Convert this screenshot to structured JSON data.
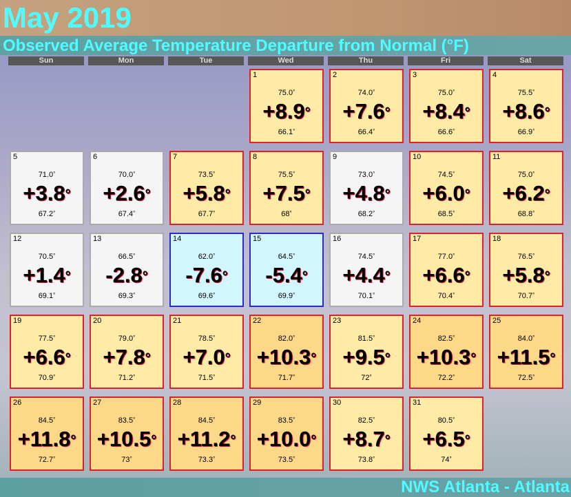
{
  "title": "May 2019",
  "subtitle": "Observed Average Temperature Departure from Normal (°F)",
  "footer": "NWS Atlanta - Atlanta",
  "weekdays": [
    "Sun",
    "Mon",
    "Tue",
    "Wed",
    "Thu",
    "Fri",
    "Sat"
  ],
  "colors": {
    "title_text": "#4ffcff",
    "warm_fill": "#ffeaa6",
    "hot_fill": "#fed889",
    "neutral_fill": "#f5f5f5",
    "cool_fill": "#d2f6fe",
    "warm_border": "#e0202a",
    "cool_border": "#2a2ad0"
  },
  "days": [
    {
      "day": "1",
      "hi": "75.0",
      "dep": "+8.9",
      "lo": "66.1",
      "style": "warm"
    },
    {
      "day": "2",
      "hi": "74.0",
      "dep": "+7.6",
      "lo": "66.4",
      "style": "warm"
    },
    {
      "day": "3",
      "hi": "75.0",
      "dep": "+8.4",
      "lo": "66.6",
      "style": "warm"
    },
    {
      "day": "4",
      "hi": "75.5",
      "dep": "+8.6",
      "lo": "66.9",
      "style": "warm"
    },
    {
      "day": "5",
      "hi": "71.0",
      "dep": "+3.8",
      "lo": "67.2",
      "style": "neutral"
    },
    {
      "day": "6",
      "hi": "70.0",
      "dep": "+2.6",
      "lo": "67.4",
      "style": "neutral"
    },
    {
      "day": "7",
      "hi": "73.5",
      "dep": "+5.8",
      "lo": "67.7",
      "style": "warm"
    },
    {
      "day": "8",
      "hi": "75.5",
      "dep": "+7.5",
      "lo": "68",
      "style": "warm"
    },
    {
      "day": "9",
      "hi": "73.0",
      "dep": "+4.8",
      "lo": "68.2",
      "style": "neutral"
    },
    {
      "day": "10",
      "hi": "74.5",
      "dep": "+6.0",
      "lo": "68.5",
      "style": "warm"
    },
    {
      "day": "11",
      "hi": "75.0",
      "dep": "+6.2",
      "lo": "68.8",
      "style": "warm"
    },
    {
      "day": "12",
      "hi": "70.5",
      "dep": "+1.4",
      "lo": "69.1",
      "style": "neutral"
    },
    {
      "day": "13",
      "hi": "66.5",
      "dep": "-2.8",
      "lo": "69.3",
      "style": "neutral"
    },
    {
      "day": "14",
      "hi": "62.0",
      "dep": "-7.6",
      "lo": "69.6",
      "style": "cool"
    },
    {
      "day": "15",
      "hi": "64.5",
      "dep": "-5.4",
      "lo": "69.9",
      "style": "cool"
    },
    {
      "day": "16",
      "hi": "74.5",
      "dep": "+4.4",
      "lo": "70.1",
      "style": "neutral"
    },
    {
      "day": "17",
      "hi": "77.0",
      "dep": "+6.6",
      "lo": "70.4",
      "style": "warm"
    },
    {
      "day": "18",
      "hi": "76.5",
      "dep": "+5.8",
      "lo": "70.7",
      "style": "warm"
    },
    {
      "day": "19",
      "hi": "77.5",
      "dep": "+6.6",
      "lo": "70.9",
      "style": "warm"
    },
    {
      "day": "20",
      "hi": "79.0",
      "dep": "+7.8",
      "lo": "71.2",
      "style": "warm"
    },
    {
      "day": "21",
      "hi": "78.5",
      "dep": "+7.0",
      "lo": "71.5",
      "style": "warm"
    },
    {
      "day": "22",
      "hi": "82.0",
      "dep": "+10.3",
      "lo": "71.7",
      "style": "hot"
    },
    {
      "day": "23",
      "hi": "81.5",
      "dep": "+9.5",
      "lo": "72",
      "style": "warm"
    },
    {
      "day": "24",
      "hi": "82.5",
      "dep": "+10.3",
      "lo": "72.2",
      "style": "hot"
    },
    {
      "day": "25",
      "hi": "84.0",
      "dep": "+11.5",
      "lo": "72.5",
      "style": "hot"
    },
    {
      "day": "26",
      "hi": "84.5",
      "dep": "+11.8",
      "lo": "72.7",
      "style": "hot"
    },
    {
      "day": "27",
      "hi": "83.5",
      "dep": "+10.5",
      "lo": "73",
      "style": "hot"
    },
    {
      "day": "28",
      "hi": "84.5",
      "dep": "+11.2",
      "lo": "73.3",
      "style": "hot"
    },
    {
      "day": "29",
      "hi": "83.5",
      "dep": "+10.0",
      "lo": "73.5",
      "style": "hot"
    },
    {
      "day": "30",
      "hi": "82.5",
      "dep": "+8.7",
      "lo": "73.8",
      "style": "warm"
    },
    {
      "day": "31",
      "hi": "80.5",
      "dep": "+6.5",
      "lo": "74",
      "style": "warm"
    }
  ]
}
